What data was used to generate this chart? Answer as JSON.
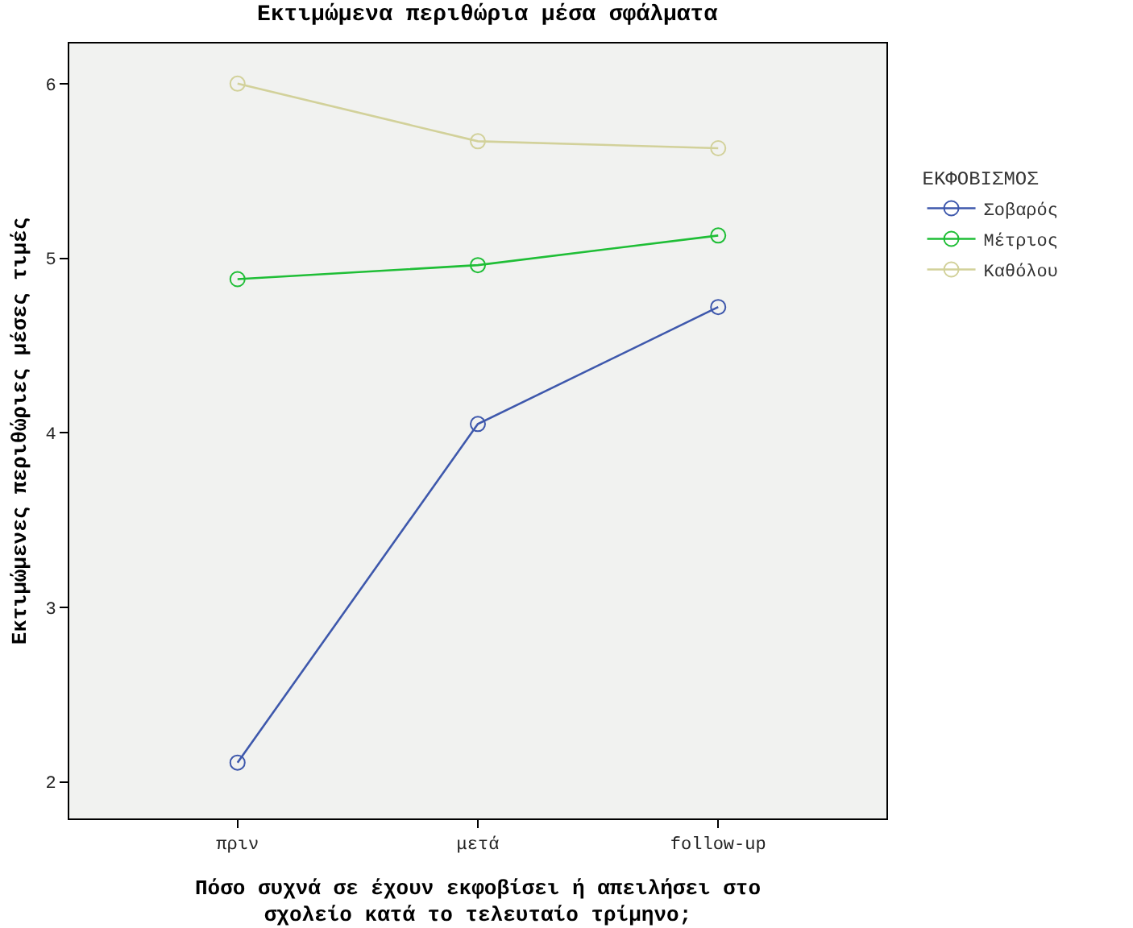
{
  "chart_data": {
    "type": "line",
    "title": "Εκτιμώμενα περιθώρια μέσα σφάλματα",
    "xlabel": "Πόσο συχνά σε έχουν εκφοβίσει ή απειλήσει στο\nσχολείο κατά το τελευταίο τρίμηνο;",
    "ylabel": "Εκτιμώμενες περιθώριες μέσες τιμές",
    "legend_title": "ΕΚΦΟΒΙΣΜΟΣ",
    "categories": [
      "πριν",
      "μετά",
      "follow-up"
    ],
    "series": [
      {
        "name": "Σοβαρός",
        "color": "#3e58ac",
        "values": [
          2.11,
          4.05,
          4.72
        ]
      },
      {
        "name": "Μέτριος",
        "color": "#1fbe36",
        "values": [
          4.88,
          4.96,
          5.13
        ]
      },
      {
        "name": "Καθόλου",
        "color": "#d2d19a",
        "values": [
          6.0,
          5.67,
          5.63
        ]
      }
    ],
    "ylim": [
      1.79,
      6.23
    ],
    "yticks": [
      2,
      3,
      4,
      5,
      6
    ],
    "grid": false,
    "legend": "right",
    "marker": "circle",
    "line_style": "solid"
  }
}
